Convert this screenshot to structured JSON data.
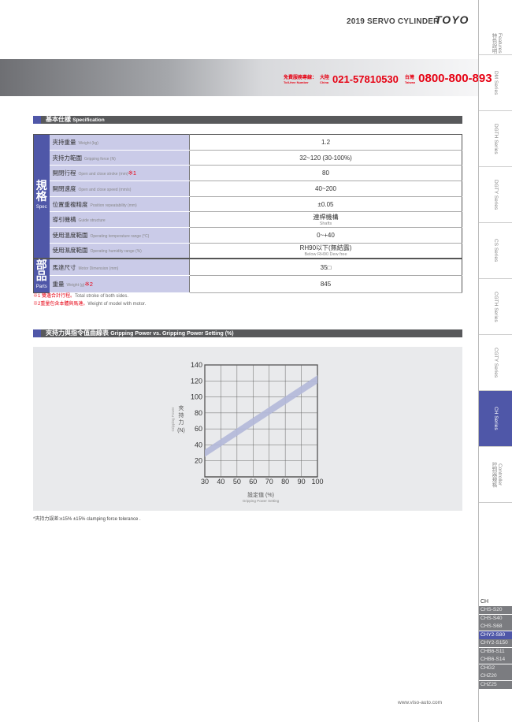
{
  "header": {
    "title": "2019 SERVO CYLINDER",
    "logo": "TOYO"
  },
  "hotline": {
    "label_zh": "免費服務專線：",
    "label_en": "Toll-free Number",
    "china_zh": "大陸",
    "china_en": "China",
    "china_number": "021-57810530",
    "taiwan_zh": "台灣",
    "taiwan_en": "Taiwan",
    "taiwan_number": "0800-800-893"
  },
  "spec_section": {
    "title_zh": "基本仕樣",
    "title_en": "Specification"
  },
  "spec": {
    "group_spec": {
      "zh": "規格",
      "en": "Spec"
    },
    "group_parts": {
      "zh": "部品",
      "en": "Parts"
    },
    "rows": [
      {
        "zh": "夾持重量",
        "en": "Weight (kg)",
        "note": "",
        "value": "1.2",
        "sub": ""
      },
      {
        "zh": "夾持力範圍",
        "en": "Gripping force (N)",
        "note": "",
        "value": "32~120 (30-100%)",
        "sub": ""
      },
      {
        "zh": "開閉行程",
        "en": "Open and close stroke (mm)",
        "note": "※1",
        "value": "80",
        "sub": ""
      },
      {
        "zh": "開閉速度",
        "en": "Open and close speed (mm/s)",
        "note": "",
        "value": "40~200",
        "sub": ""
      },
      {
        "zh": "位置重複精度",
        "en": "Position repeatability (mm)",
        "note": "",
        "value": "±0.05",
        "sub": ""
      },
      {
        "zh": "導引機構",
        "en": "Guide structure",
        "note": "",
        "value": "連桿機構",
        "sub": "Shafts"
      },
      {
        "zh": "使用溫度範圍",
        "en": "Operating temperature range (°C)",
        "note": "",
        "value": "0~+40",
        "sub": ""
      },
      {
        "zh": "使用濕度範圍",
        "en": "Operating humidity range (%)",
        "note": "",
        "value": "RH90以下(無結露)",
        "sub": "Below RH90 Dew free"
      },
      {
        "zh": "馬達尺寸",
        "en": "Motor Dimension (mm)",
        "note": "",
        "value": "35□",
        "sub": ""
      },
      {
        "zh": "重量",
        "en": "Weight (g)",
        "note": "※2",
        "value": "845",
        "sub": ""
      }
    ],
    "notes": [
      {
        "mark": "※1 雙邊合計行程。",
        "text": "Total stroke of both sides."
      },
      {
        "mark": "※2重量包含本體與馬達。",
        "text": "Weight of model with motor."
      }
    ]
  },
  "chart_section": {
    "title_zh": "夾持力與指令值曲線表",
    "title_en": "Gripping Power vs. Gripping Power Setting (%)"
  },
  "chart_data": {
    "type": "area",
    "xlabel_zh": "設定值 (%)",
    "xlabel_en": "Gripping Power Setting",
    "ylabel_zh": "夾持力",
    "ylabel_unit": "(N)",
    "ylabel_en": "Gripping Power",
    "xlim": [
      30,
      100
    ],
    "ylim": [
      0,
      140
    ],
    "xticks": [
      30,
      40,
      50,
      60,
      70,
      80,
      90,
      100
    ],
    "yticks": [
      20,
      40,
      60,
      80,
      100,
      120,
      140
    ],
    "grid": true,
    "band": {
      "x": [
        30,
        100
      ],
      "lower": [
        25,
        117
      ],
      "upper": [
        34,
        127
      ]
    },
    "band_color": "#b3b8d9"
  },
  "chart_note": "*夾持力誤差:±15%  ±15% clamping force tolerance .",
  "sidebar": {
    "tabs": [
      {
        "zh": "特色說明",
        "en": "Features"
      },
      {
        "zh": "",
        "en": "DM Series"
      },
      {
        "zh": "",
        "en": "DGTH Series"
      },
      {
        "zh": "",
        "en": "DGTY Series"
      },
      {
        "zh": "",
        "en": "CS Series"
      },
      {
        "zh": "",
        "en": "CGTH Series"
      },
      {
        "zh": "",
        "en": "CGTY Series"
      },
      {
        "zh": "",
        "en": "CH Series"
      },
      {
        "zh": "控制器規格",
        "en": "Controller"
      }
    ],
    "active": "CH Series",
    "models_heading": "CH",
    "models": [
      "CHS-S20",
      "CHS-S40",
      "CHS-S68",
      "CHY2-S80",
      "CHY2-S150",
      "CHB6-S11",
      "CHB6-S14",
      "CHG2",
      "CHZ20",
      "CHZ25"
    ],
    "active_model": "CHY2-S80"
  },
  "footer": {
    "url": "www.viso-auto.com"
  },
  "colors": {
    "accent": "#4f57a8",
    "red": "#e60012",
    "header_bar": "#58595b"
  }
}
